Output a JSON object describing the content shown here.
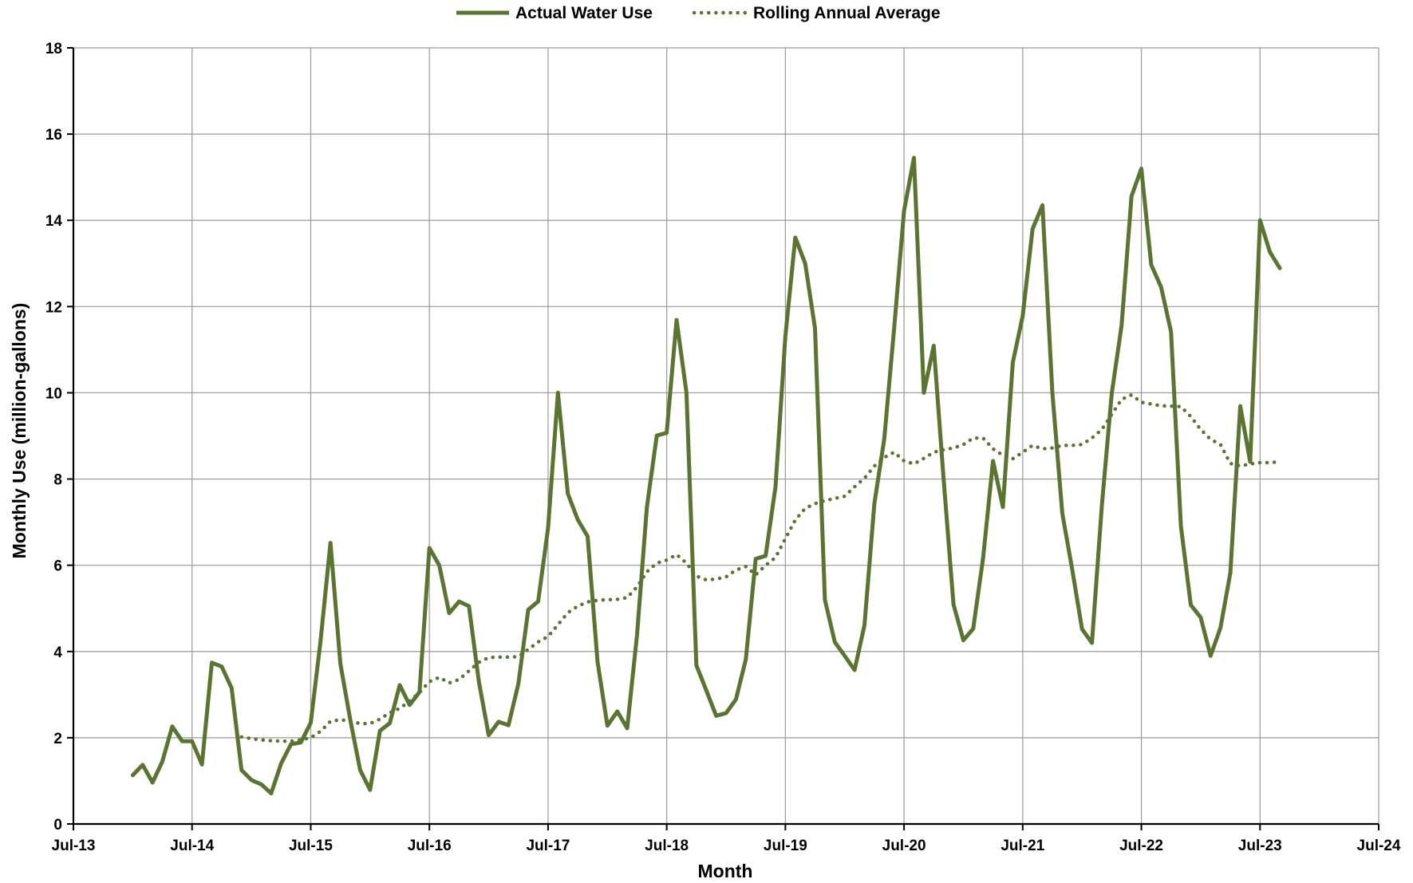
{
  "colors": {
    "series": "#5b7431",
    "grid": "#999999",
    "axis": "#000000"
  },
  "legend": {
    "placement": "top-center"
  },
  "chart_data": {
    "type": "line",
    "title": "",
    "xlabel": "Month",
    "ylabel": "Monthly Use (million-gallons)",
    "xlim": [
      "2013-07",
      "2024-07"
    ],
    "ylim": [
      0,
      18
    ],
    "grid": true,
    "x_tick_labels": [
      "Jul-13",
      "Jul-14",
      "Jul-15",
      "Jul-16",
      "Jul-17",
      "Jul-18",
      "Jul-19",
      "Jul-20",
      "Jul-21",
      "Jul-22",
      "Jul-23",
      "Jul-24"
    ],
    "y_ticks": [
      0,
      2,
      4,
      6,
      8,
      10,
      12,
      14,
      16,
      18
    ],
    "y_tick_labels": [
      "0",
      "2",
      "4",
      "6",
      "8",
      "10",
      "12",
      "14",
      "16",
      "18"
    ],
    "series": [
      {
        "name": "Actual Water Use",
        "style": "solid",
        "x": [
          "2014-01",
          "2014-02",
          "2014-03",
          "2014-04",
          "2014-05",
          "2014-06",
          "2014-07",
          "2014-08",
          "2014-09",
          "2014-10",
          "2014-11",
          "2014-12",
          "2015-01",
          "2015-02",
          "2015-03",
          "2015-04",
          "2015-05",
          "2015-06",
          "2015-07",
          "2015-08",
          "2015-09",
          "2015-10",
          "2015-11",
          "2015-12",
          "2016-01",
          "2016-02",
          "2016-03",
          "2016-04",
          "2016-05",
          "2016-06",
          "2016-07",
          "2016-08",
          "2016-09",
          "2016-10",
          "2016-11",
          "2016-12",
          "2017-01",
          "2017-02",
          "2017-03",
          "2017-04",
          "2017-05",
          "2017-06",
          "2017-07",
          "2017-08",
          "2017-09",
          "2017-10",
          "2017-11",
          "2017-12",
          "2018-01",
          "2018-02",
          "2018-03",
          "2018-04",
          "2018-05",
          "2018-06",
          "2018-07",
          "2018-08",
          "2018-09",
          "2018-10",
          "2018-11",
          "2018-12",
          "2019-01",
          "2019-02",
          "2019-03",
          "2019-04",
          "2019-05",
          "2019-06",
          "2019-07",
          "2019-08",
          "2019-09",
          "2019-10",
          "2019-11",
          "2019-12",
          "2020-01",
          "2020-02",
          "2020-03",
          "2020-04",
          "2020-05",
          "2020-06",
          "2020-07",
          "2020-08",
          "2020-09",
          "2020-10",
          "2020-11",
          "2020-12",
          "2021-01",
          "2021-02",
          "2021-03",
          "2021-04",
          "2021-05",
          "2021-06",
          "2021-07",
          "2021-08",
          "2021-09",
          "2021-10",
          "2021-11",
          "2021-12",
          "2022-01",
          "2022-02",
          "2022-03",
          "2022-04",
          "2022-05",
          "2022-06",
          "2022-07",
          "2022-08",
          "2022-09",
          "2022-10",
          "2022-11",
          "2022-12",
          "2023-01",
          "2023-02",
          "2023-03",
          "2023-04",
          "2023-05",
          "2023-06",
          "2023-07",
          "2023-08",
          "2023-09"
        ],
        "values": [
          1.13,
          1.37,
          0.96,
          1.45,
          2.26,
          1.92,
          1.92,
          1.38,
          3.74,
          3.65,
          3.15,
          1.25,
          1.02,
          0.92,
          0.71,
          1.4,
          1.85,
          1.89,
          2.35,
          4.25,
          6.52,
          3.72,
          2.42,
          1.25,
          0.79,
          2.16,
          2.34,
          3.22,
          2.76,
          3.06,
          6.4,
          6.0,
          4.89,
          5.16,
          5.05,
          3.3,
          2.06,
          2.37,
          2.29,
          3.25,
          4.97,
          5.16,
          6.86,
          10.0,
          7.66,
          7.06,
          6.67,
          3.77,
          2.28,
          2.61,
          2.22,
          4.4,
          7.35,
          9.01,
          9.07,
          11.69,
          10.0,
          3.68,
          3.1,
          2.51,
          2.57,
          2.89,
          3.82,
          6.15,
          6.22,
          7.82,
          11.32,
          13.6,
          13.0,
          11.5,
          5.2,
          4.22,
          3.9,
          3.57,
          4.61,
          7.43,
          8.93,
          11.5,
          14.22,
          15.45,
          10.0,
          11.09,
          8.0,
          5.09,
          4.26,
          4.53,
          6.17,
          8.42,
          7.35,
          10.7,
          11.78,
          13.8,
          14.35,
          10.0,
          7.21,
          5.91,
          4.52,
          4.2,
          7.38,
          9.98,
          11.57,
          14.56,
          15.2,
          12.97,
          12.45,
          11.42,
          6.91,
          5.08,
          4.79,
          3.9,
          4.55,
          5.83,
          9.69,
          8.4,
          14.0,
          13.26,
          12.89
        ]
      },
      {
        "name": "Rolling Annual Average",
        "style": "dotted",
        "x": [
          "2014-12",
          "2015-01",
          "2015-02",
          "2015-03",
          "2015-04",
          "2015-05",
          "2015-06",
          "2015-07",
          "2015-08",
          "2015-09",
          "2015-10",
          "2015-11",
          "2015-12",
          "2016-01",
          "2016-02",
          "2016-03",
          "2016-04",
          "2016-05",
          "2016-06",
          "2016-07",
          "2016-08",
          "2016-09",
          "2016-10",
          "2016-11",
          "2016-12",
          "2017-01",
          "2017-02",
          "2017-03",
          "2017-04",
          "2017-05",
          "2017-06",
          "2017-07",
          "2017-08",
          "2017-09",
          "2017-10",
          "2017-11",
          "2017-12",
          "2018-01",
          "2018-02",
          "2018-03",
          "2018-04",
          "2018-05",
          "2018-06",
          "2018-07",
          "2018-08",
          "2018-09",
          "2018-10",
          "2018-11",
          "2018-12",
          "2019-01",
          "2019-02",
          "2019-03",
          "2019-04",
          "2019-05",
          "2019-06",
          "2019-07",
          "2019-08",
          "2019-09",
          "2019-10",
          "2019-11",
          "2019-12",
          "2020-01",
          "2020-02",
          "2020-03",
          "2020-04",
          "2020-05",
          "2020-06",
          "2020-07",
          "2020-08",
          "2020-09",
          "2020-10",
          "2020-11",
          "2020-12",
          "2021-01",
          "2021-02",
          "2021-03",
          "2021-04",
          "2021-05",
          "2021-06",
          "2021-07",
          "2021-08",
          "2021-09",
          "2021-10",
          "2021-11",
          "2021-12",
          "2022-01",
          "2022-02",
          "2022-03",
          "2022-04",
          "2022-05",
          "2022-06",
          "2022-07",
          "2022-08",
          "2022-09",
          "2022-10",
          "2022-11",
          "2022-12",
          "2023-01",
          "2023-02",
          "2023-03",
          "2023-04",
          "2023-05",
          "2023-06",
          "2023-07",
          "2023-08",
          "2023-09"
        ],
        "values": [
          2.02,
          1.98,
          1.95,
          1.93,
          1.92,
          1.92,
          1.95,
          2.0,
          2.15,
          2.38,
          2.42,
          2.38,
          2.33,
          2.33,
          2.43,
          2.58,
          2.68,
          2.85,
          3.05,
          3.3,
          3.4,
          3.27,
          3.35,
          3.55,
          3.75,
          3.86,
          3.87,
          3.87,
          3.88,
          4.05,
          4.22,
          4.35,
          4.62,
          4.9,
          5.05,
          5.15,
          5.19,
          5.2,
          5.21,
          5.25,
          5.5,
          5.85,
          6.05,
          6.12,
          6.25,
          6.05,
          5.75,
          5.66,
          5.68,
          5.73,
          5.89,
          5.97,
          5.78,
          6.0,
          6.18,
          6.62,
          7.05,
          7.32,
          7.43,
          7.5,
          7.55,
          7.6,
          7.82,
          8.02,
          8.3,
          8.5,
          8.62,
          8.42,
          8.35,
          8.48,
          8.62,
          8.68,
          8.72,
          8.8,
          8.95,
          8.95,
          8.7,
          8.55,
          8.47,
          8.62,
          8.78,
          8.7,
          8.72,
          8.78,
          8.78,
          8.8,
          8.95,
          9.15,
          9.5,
          9.85,
          9.95,
          9.78,
          9.74,
          9.7,
          9.69,
          9.68,
          9.45,
          9.15,
          8.92,
          8.8,
          8.36,
          8.3,
          8.35,
          8.38,
          8.38,
          8.4
        ]
      }
    ]
  }
}
